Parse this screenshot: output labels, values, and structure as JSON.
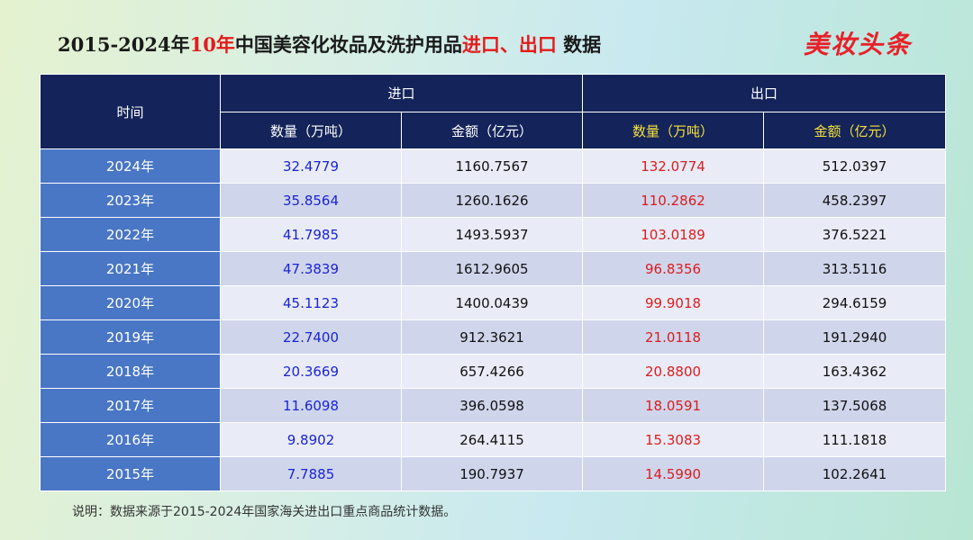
{
  "title": {
    "prefix": "2015-2024年",
    "highlight1": "10年",
    "middle": "中国美容化妆品及洗护用品",
    "highlight2": "进口、出口",
    "suffix": " 数据"
  },
  "logo": "美妆头条",
  "table": {
    "time_header": "时间",
    "import_header": "进口",
    "export_header": "出口",
    "import_qty_header": "数量（万吨）",
    "import_amt_header": "金额（亿元）",
    "export_qty_header": "数量（万吨）",
    "export_amt_header": "金额（亿元）",
    "rows": [
      {
        "year": "2024年",
        "import_qty": "32.4779",
        "import_amt": "1160.7567",
        "export_qty": "132.0774",
        "export_amt": "512.0397"
      },
      {
        "year": "2023年",
        "import_qty": "35.8564",
        "import_amt": "1260.1626",
        "export_qty": "110.2862",
        "export_amt": "458.2397"
      },
      {
        "year": "2022年",
        "import_qty": "41.7985",
        "import_amt": "1493.5937",
        "export_qty": "103.0189",
        "export_amt": "376.5221"
      },
      {
        "year": "2021年",
        "import_qty": "47.3839",
        "import_amt": "1612.9605",
        "export_qty": "96.8356",
        "export_amt": "313.5116"
      },
      {
        "year": "2020年",
        "import_qty": "45.1123",
        "import_amt": "1400.0439",
        "export_qty": "99.9018",
        "export_amt": "294.6159"
      },
      {
        "year": "2019年",
        "import_qty": "22.7400",
        "import_amt": "912.3621",
        "export_qty": "21.0118",
        "export_amt": "191.2940"
      },
      {
        "year": "2018年",
        "import_qty": "20.3669",
        "import_amt": "657.4266",
        "export_qty": "20.8800",
        "export_amt": "163.4362"
      },
      {
        "year": "2017年",
        "import_qty": "11.6098",
        "import_amt": "396.0598",
        "export_qty": "18.0591",
        "export_amt": "137.5068"
      },
      {
        "year": "2016年",
        "import_qty": "9.8902",
        "import_amt": "264.4115",
        "export_qty": "15.3083",
        "export_amt": "111.1818"
      },
      {
        "year": "2015年",
        "import_qty": "7.7885",
        "import_amt": "190.7937",
        "export_qty": "14.5990",
        "export_amt": "102.2641"
      }
    ]
  },
  "note": "说明：数据来源于2015-2024年国家海关进出口重点商品统计数据。",
  "colors": {
    "header_bg": "#14245a",
    "year_bg": "#4a76c6",
    "import_qty": "#1a24d6",
    "export_qty": "#d91e1e",
    "export_subheader": "#f5e13a",
    "title_highlight": "#e41b1b",
    "logo": "#e8212a"
  }
}
